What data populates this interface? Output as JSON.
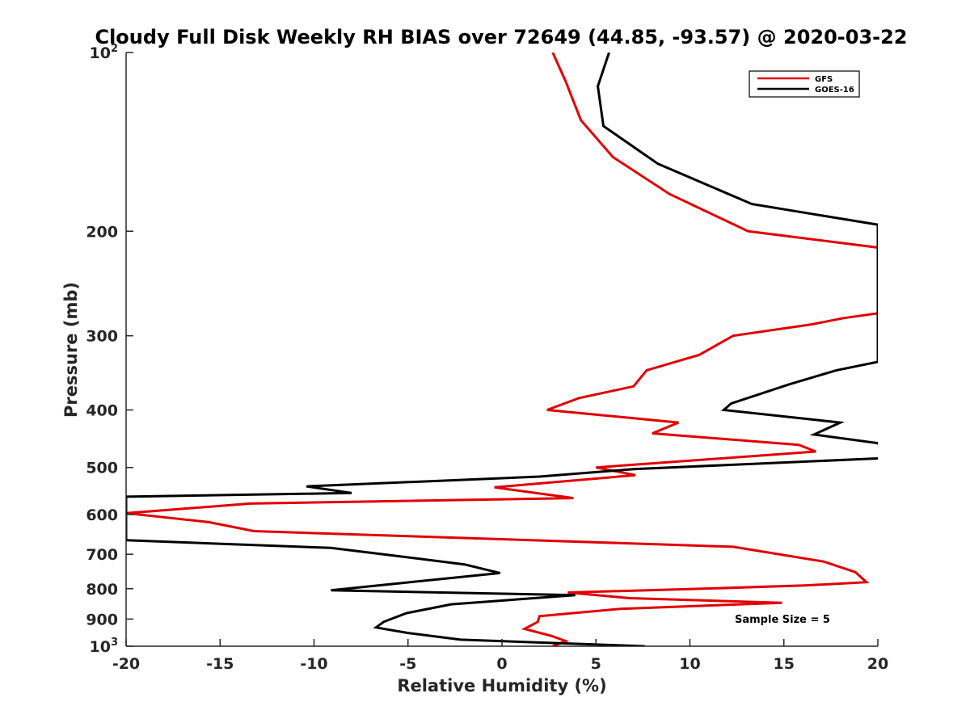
{
  "chart_data": {
    "type": "line",
    "title": "Cloudy Full Disk Weekly RH BIAS over 72649 (44.85, -93.57) @ 2020-03-22",
    "xlabel": "Relative Humidity (%)",
    "ylabel": "Pressure (mb)",
    "xlim": [
      -20,
      20
    ],
    "ylim": [
      100,
      1000
    ],
    "y_scale": "log",
    "y_reversed": true,
    "grid": false,
    "legend_position": "top-right",
    "x_ticks": [
      -20,
      -15,
      -10,
      -5,
      0,
      5,
      10,
      15,
      20
    ],
    "x_tick_labels": [
      "-20",
      "-15",
      "-10",
      "-5",
      "0",
      "5",
      "10",
      "15",
      "20"
    ],
    "y_ticks": [
      {
        "value": 100,
        "base": "10",
        "exp": "2"
      },
      {
        "value": 200,
        "label": "200"
      },
      {
        "value": 300,
        "label": "300"
      },
      {
        "value": 400,
        "label": "400"
      },
      {
        "value": 500,
        "label": "500"
      },
      {
        "value": 600,
        "label": "600"
      },
      {
        "value": 700,
        "label": "700"
      },
      {
        "value": 800,
        "label": "800"
      },
      {
        "value": 900,
        "label": "900"
      },
      {
        "value": 1000,
        "base": "10",
        "exp": "3"
      }
    ],
    "annotation": "Sample Size = 5",
    "series": [
      {
        "name": "GFS",
        "color": "#e00000",
        "points": [
          [
            2.7,
            100
          ],
          [
            3.4,
            112
          ],
          [
            4.2,
            130
          ],
          [
            5.9,
            150
          ],
          [
            8.9,
            173
          ],
          [
            13.1,
            200
          ],
          [
            20.5,
            214
          ],
          [
            20,
            275
          ],
          [
            18.2,
            280
          ],
          [
            16.5,
            287
          ],
          [
            12.3,
            300
          ],
          [
            10.5,
            323
          ],
          [
            7.7,
            343
          ],
          [
            7.0,
            365
          ],
          [
            4.1,
            382
          ],
          [
            2.4,
            400
          ],
          [
            9.4,
            420
          ],
          [
            8.0,
            438
          ],
          [
            15.8,
            458
          ],
          [
            16.7,
            470
          ],
          [
            5.0,
            500
          ],
          [
            7.1,
            515
          ],
          [
            -0.4,
            540
          ],
          [
            3.8,
            563
          ],
          [
            -13.4,
            575
          ],
          [
            -20,
            597
          ],
          [
            -15.6,
            618
          ],
          [
            -13.2,
            640
          ],
          [
            12.3,
            680
          ],
          [
            17.1,
            720
          ],
          [
            18.8,
            750
          ],
          [
            19.4,
            780
          ],
          [
            16.1,
            790
          ],
          [
            10.7,
            800
          ],
          [
            3.5,
            812
          ],
          [
            6.8,
            830
          ],
          [
            14.9,
            845
          ],
          [
            6.3,
            865
          ],
          [
            2.0,
            890
          ],
          [
            1.9,
            910
          ],
          [
            1.2,
            935
          ],
          [
            2.6,
            960
          ],
          [
            3.4,
            980
          ],
          [
            2.7,
            1000
          ]
        ]
      },
      {
        "name": "GOES-16",
        "color": "#000000",
        "points": [
          [
            5.7,
            100
          ],
          [
            5.1,
            114
          ],
          [
            5.4,
            133
          ],
          [
            8.3,
            154
          ],
          [
            13.3,
            180
          ],
          [
            20,
            195
          ],
          [
            20,
            332
          ],
          [
            17.8,
            343
          ],
          [
            15.3,
            362
          ],
          [
            12.2,
            390
          ],
          [
            11.8,
            400
          ],
          [
            18.0,
            420
          ],
          [
            16.6,
            440
          ],
          [
            20,
            455
          ],
          [
            20.5,
            482
          ],
          [
            7.0,
            503
          ],
          [
            2.0,
            518
          ],
          [
            -10.4,
            538
          ],
          [
            -8.0,
            552
          ],
          [
            -20,
            560
          ],
          [
            -20,
            663
          ],
          [
            -9.1,
            683
          ],
          [
            -6.0,
            702
          ],
          [
            -2.0,
            728
          ],
          [
            -0.1,
            753
          ],
          [
            -4.9,
            780
          ],
          [
            -9.1,
            805
          ],
          [
            3.9,
            820
          ],
          [
            -2.7,
            850
          ],
          [
            -5.1,
            880
          ],
          [
            -6.3,
            910
          ],
          [
            -6.7,
            930
          ],
          [
            -5.0,
            950
          ],
          [
            -2.2,
            975
          ],
          [
            7.6,
            1000
          ]
        ]
      }
    ]
  }
}
